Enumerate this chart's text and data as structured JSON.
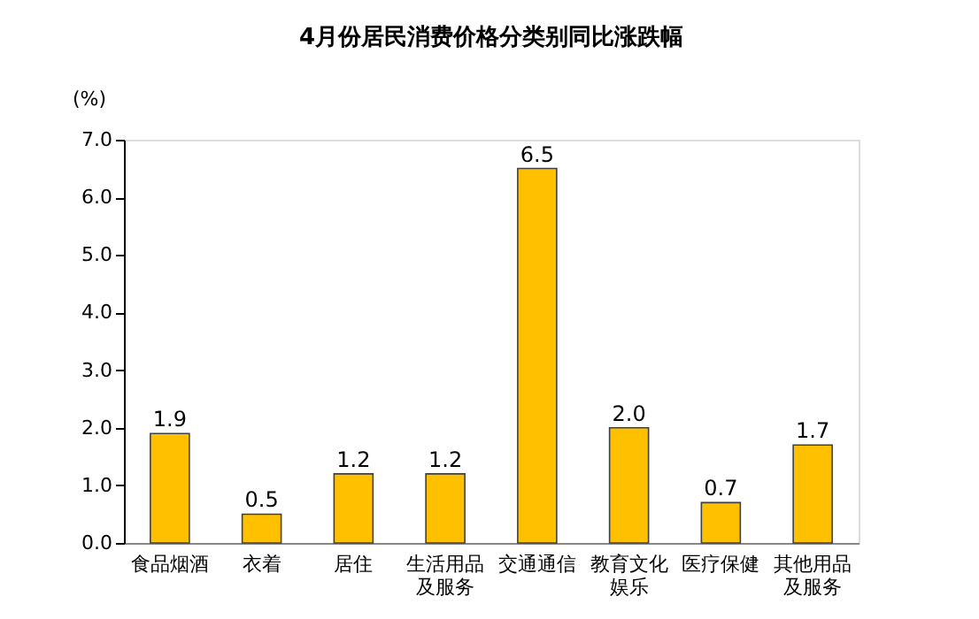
{
  "chart_data": {
    "type": "bar",
    "title": "4月份居民消费价格分类别同比涨跌幅",
    "ylabel": "(%)",
    "categories": [
      "食品烟酒",
      "衣着",
      "居住",
      "生活用品及服务",
      "交通通信",
      "教育文化娱乐",
      "医疗保健",
      "其他用品及服务"
    ],
    "values": [
      1.9,
      0.5,
      1.2,
      1.2,
      6.5,
      2.0,
      0.7,
      1.7
    ],
    "value_labels": [
      "1.9",
      "0.5",
      "1.2",
      "1.2",
      "6.5",
      "2.0",
      "0.7",
      "1.7"
    ],
    "color": "#ffc000",
    "ylim": [
      0,
      7
    ],
    "yticks": [
      {
        "value": 0,
        "label": "0.0"
      },
      {
        "value": 1,
        "label": "1.0"
      },
      {
        "value": 2,
        "label": "2.0"
      },
      {
        "value": 3,
        "label": "3.0"
      },
      {
        "value": 4,
        "label": "4.0"
      },
      {
        "value": 5,
        "label": "5.0"
      },
      {
        "value": 6,
        "label": "6.0"
      },
      {
        "value": 7,
        "label": "7.0"
      }
    ],
    "grid": false
  }
}
